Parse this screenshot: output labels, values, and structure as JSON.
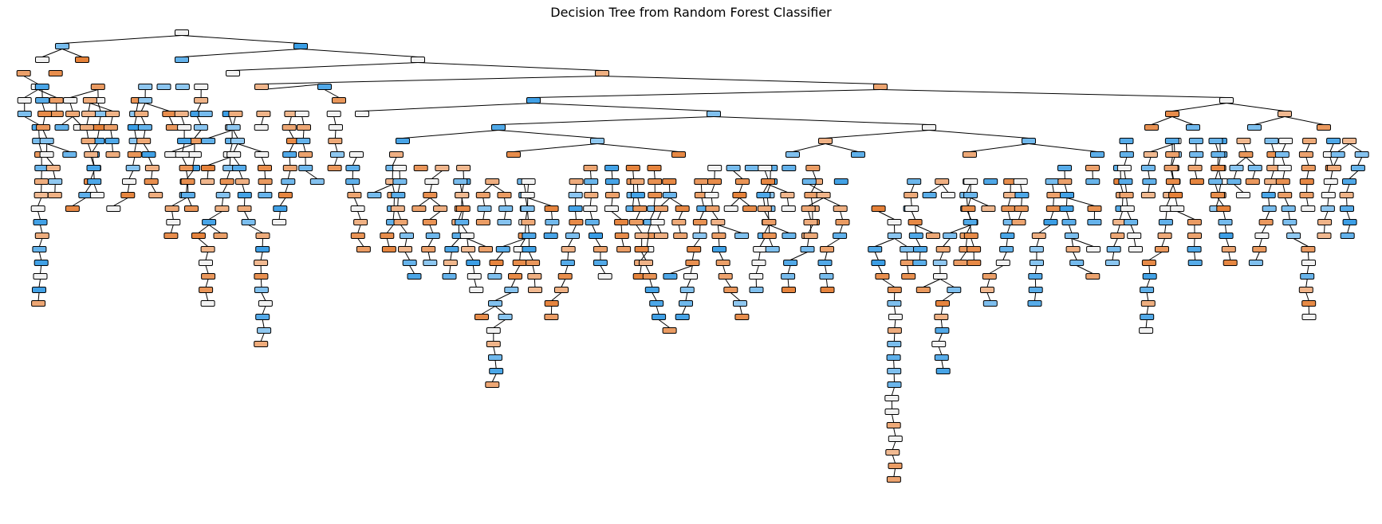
{
  "title": "Decision Tree from Random Forest Classifier",
  "colors": {
    "class_0": "#e58139",
    "class_1": "#399de5",
    "mixed": "#f2f2f2",
    "edge": "#000000",
    "node_border": "#000000"
  },
  "tree": {
    "type": "decision-tree",
    "root_split_label": "",
    "legend": "none"
  }
}
